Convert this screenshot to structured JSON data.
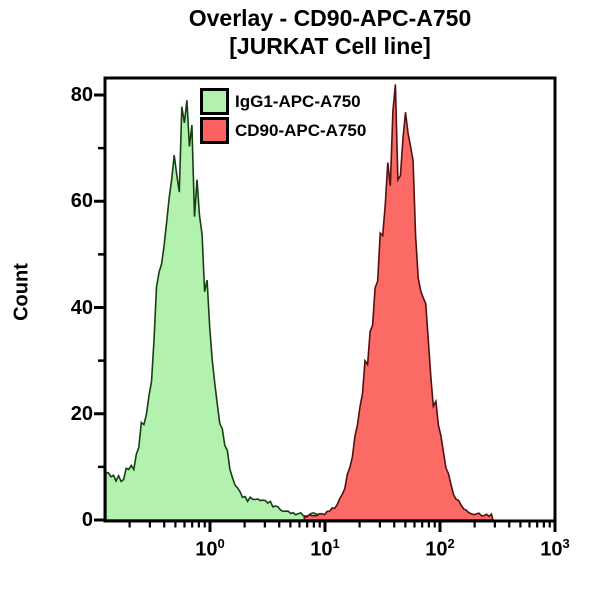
{
  "title": {
    "line1": "Overlay - CD90-APC-A750",
    "line2": "[JURKAT Cell line]"
  },
  "y_axis": {
    "label": "Count"
  },
  "legend": {
    "items": [
      {
        "label": "IgG1-APC-A750",
        "swatch_color": "#b2f1ae"
      },
      {
        "label": "CD90-APC-A750",
        "swatch_color": "#fb625f"
      }
    ]
  },
  "chart_data": {
    "type": "area",
    "subtype": "flow-cytometry-histogram-overlay",
    "title": "Overlay - CD90-APC-A750 [JURKAT Cell line]",
    "xlabel": "",
    "ylabel": "Count",
    "grid": false,
    "legend_position": "top-left-inside",
    "frame_color": "#000000",
    "x_scale": "log10",
    "x_range_log10": [
      -0.905,
      3.0
    ],
    "x_major_tick_exponents": [
      0,
      1,
      2,
      3
    ],
    "ylim": [
      0,
      83
    ],
    "y_major_ticks": [
      0,
      20,
      40,
      60,
      80
    ],
    "y_minor_ticks": [
      10,
      30,
      50,
      70
    ],
    "series": [
      {
        "name": "IgG1-APC-A750",
        "fill": "#b2f1ae",
        "stroke": "#173f12",
        "seed": 7,
        "domain_log10": [
          -0.905,
          1.03
        ],
        "peak": {
          "x": 0.58,
          "count": 78
        },
        "components": [
          {
            "mu": -0.235,
            "sigma": 0.2,
            "height": 70
          },
          {
            "mu": -1.03,
            "sigma": 0.24,
            "height": 9
          },
          {
            "mu": 0.45,
            "sigma": 0.12,
            "height": 2.4
          }
        ],
        "floor": 0.7,
        "noise_rel": 0.13,
        "noise_abs": 0.6
      },
      {
        "name": "CD90-APC-A750",
        "fill": "#fb6a64",
        "stroke": "#551010",
        "seed": 13,
        "domain_log10": [
          0.82,
          2.46
        ],
        "peak": {
          "x": 43,
          "count": 79
        },
        "components": [
          {
            "mu": 1.635,
            "sigma": 0.205,
            "height": 71
          }
        ],
        "floor": 0.55,
        "noise_rel": 0.13,
        "noise_abs": 0.5
      }
    ]
  }
}
